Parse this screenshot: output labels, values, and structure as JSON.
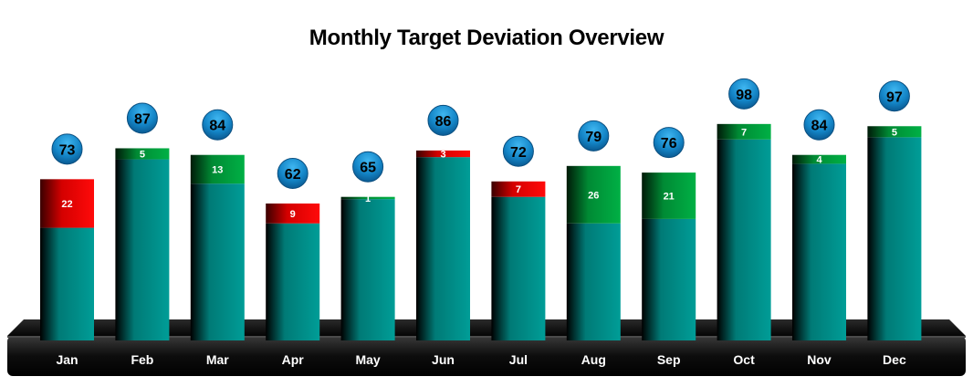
{
  "chart_data": {
    "type": "bar",
    "title": "Monthly Target Deviation Overview",
    "categories": [
      "Jan",
      "Feb",
      "Mar",
      "Apr",
      "May",
      "Jun",
      "Jul",
      "Aug",
      "Sep",
      "Oct",
      "Nov",
      "Dec"
    ],
    "totals": [
      73,
      87,
      84,
      62,
      65,
      86,
      72,
      79,
      76,
      98,
      84,
      97
    ],
    "deviation": [
      22,
      5,
      13,
      9,
      1,
      3,
      7,
      26,
      21,
      7,
      4,
      5
    ],
    "deviation_direction": [
      "below",
      "above",
      "above",
      "below",
      "above",
      "below",
      "below",
      "above",
      "above",
      "above",
      "above",
      "above"
    ],
    "xlabel": "",
    "ylabel": "",
    "ylim": [
      0,
      100
    ],
    "grid": false,
    "colors": {
      "base": "#009a94",
      "above_target": "#00a63f",
      "below_target": "#ee0000",
      "bubble": "#1a8ed0",
      "platform": "#111111"
    }
  }
}
